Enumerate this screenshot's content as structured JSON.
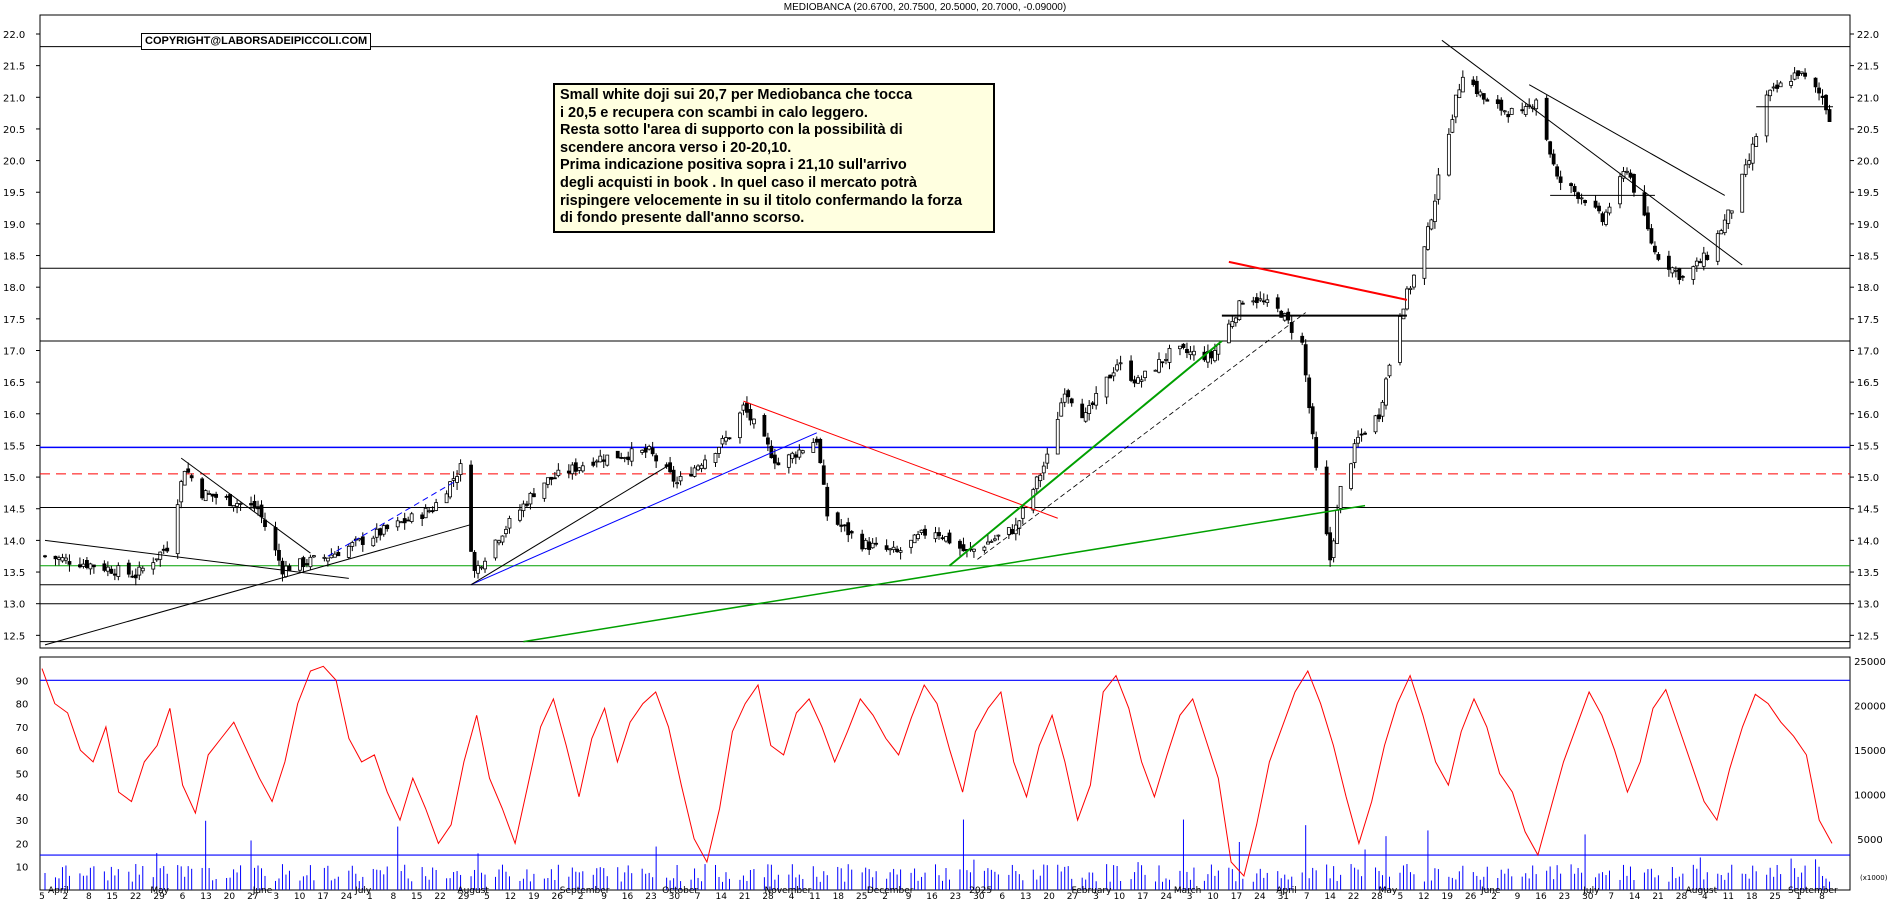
{
  "title": "MEDIOBANCA (20.6700, 20.7500, 20.5000, 20.7000, -0.09000)",
  "copyright": "COPYRIGHT@LABORSADEIPICCOLI.COM",
  "note_lines": [
    "Small white doji sui 20,7 per Mediobanca che tocca",
    "i 20,5 e recupera con scambi in calo leggero.",
    "Resta sotto l'area di supporto con la possibilità di",
    "scendere ancora verso i 20-20,10.",
    "Prima indicazione positiva sopra i 21,10 sull'arrivo",
    "degli acquisti in book . In quel caso il mercato potrà",
    "rispingere velocemente in su il titolo confermando la forza",
    "di fondo presente dall'anno scorso."
  ],
  "colors": {
    "price_axis_line": "#000000",
    "horizontal_blue": "#0000ff",
    "support_red": "#ff0000",
    "trend_green": "#00a000",
    "oscillator": "#ff0000",
    "volume": "#0000ff",
    "note_background": "#ffffe0"
  },
  "chart_data": [
    {
      "type": "candlestick",
      "ylim": [
        12.3,
        22.3
      ],
      "y_ticks": [
        "12.5",
        "13.0",
        "13.5",
        "14.0",
        "14.5",
        "15.0",
        "15.5",
        "16.0",
        "16.5",
        "17.0",
        "17.5",
        "18.0",
        "18.5",
        "19.0",
        "19.5",
        "20.0",
        "20.5",
        "21.0",
        "21.5",
        "22.0"
      ],
      "x_day_labels": [
        "5",
        "2",
        "8",
        "15",
        "22",
        "29",
        "6",
        "13",
        "20",
        "27",
        "3",
        "10",
        "17",
        "24",
        "1",
        "8",
        "15",
        "22",
        "29",
        "5",
        "12",
        "19",
        "26",
        "2",
        "9",
        "16",
        "23",
        "30",
        "7",
        "14",
        "21",
        "28",
        "4",
        "11",
        "18",
        "25",
        "2",
        "9",
        "16",
        "23",
        "30",
        "6",
        "13",
        "20",
        "27",
        "3",
        "10",
        "17",
        "24",
        "3",
        "10",
        "17",
        "24",
        "31",
        "7",
        "14",
        "22",
        "28",
        "5",
        "12",
        "19",
        "26",
        "2",
        "9",
        "16",
        "23",
        "30",
        "7",
        "14",
        "21",
        "28",
        "4",
        "11",
        "18",
        "25",
        "1",
        "8"
      ],
      "x_month_labels": [
        "April",
        "May",
        "June",
        "July",
        "August",
        "September",
        "October",
        "November",
        "December",
        "2025",
        "February",
        "March",
        "April",
        "May",
        "June",
        "July",
        "August",
        "September"
      ],
      "close_anchors": [
        [
          "2024-04-05",
          13.75
        ],
        [
          "2024-04-20",
          13.6
        ],
        [
          "2024-05-01",
          13.45
        ],
        [
          "2024-05-10",
          13.9
        ],
        [
          "2024-05-15",
          15.15
        ],
        [
          "2024-05-20",
          14.75
        ],
        [
          "2024-06-05",
          14.5
        ],
        [
          "2024-06-12",
          13.55
        ],
        [
          "2024-06-25",
          13.75
        ],
        [
          "2024-07-05",
          14.0
        ],
        [
          "2024-07-25",
          14.5
        ],
        [
          "2024-08-02",
          15.15
        ],
        [
          "2024-08-06",
          13.5
        ],
        [
          "2024-08-12",
          14.0
        ],
        [
          "2024-08-25",
          14.9
        ],
        [
          "2024-09-10",
          15.3
        ],
        [
          "2024-09-25",
          15.4
        ],
        [
          "2024-10-03",
          14.9
        ],
        [
          "2024-10-18",
          15.65
        ],
        [
          "2024-10-22",
          16.1
        ],
        [
          "2024-11-01",
          15.2
        ],
        [
          "2024-11-12",
          15.6
        ],
        [
          "2024-11-15",
          14.4
        ],
        [
          "2024-11-25",
          13.95
        ],
        [
          "2024-12-05",
          13.8
        ],
        [
          "2024-12-15",
          14.2
        ],
        [
          "2024-12-25",
          13.8
        ],
        [
          "2025-01-08",
          14.2
        ],
        [
          "2025-01-17",
          15.3
        ],
        [
          "2025-01-22",
          16.4
        ],
        [
          "2025-01-28",
          15.95
        ],
        [
          "2025-02-06",
          16.8
        ],
        [
          "2025-02-12",
          16.5
        ],
        [
          "2025-02-22",
          17.0
        ],
        [
          "2025-03-05",
          16.9
        ],
        [
          "2025-03-15",
          17.9
        ],
        [
          "2025-03-25",
          17.6
        ],
        [
          "2025-03-31",
          17.1
        ],
        [
          "2025-04-04",
          15.1
        ],
        [
          "2025-04-08",
          13.7
        ],
        [
          "2025-04-11",
          14.8
        ],
        [
          "2025-04-16",
          15.6
        ],
        [
          "2025-04-22",
          16.0
        ],
        [
          "2025-04-28",
          17.6
        ],
        [
          "2025-05-05",
          18.6
        ],
        [
          "2025-05-12",
          20.5
        ],
        [
          "2025-05-16",
          21.4
        ],
        [
          "2025-05-23",
          20.9
        ],
        [
          "2025-06-02",
          20.7
        ],
        [
          "2025-06-06",
          21.0
        ],
        [
          "2025-06-12",
          19.7
        ],
        [
          "2025-06-20",
          19.4
        ],
        [
          "2025-06-25",
          19.05
        ],
        [
          "2025-07-02",
          19.9
        ],
        [
          "2025-07-10",
          18.55
        ],
        [
          "2025-07-18",
          18.15
        ],
        [
          "2025-07-25",
          18.5
        ],
        [
          "2025-08-01",
          19.25
        ],
        [
          "2025-08-06",
          20.0
        ],
        [
          "2025-08-11",
          21.0
        ],
        [
          "2025-08-20",
          21.4
        ],
        [
          "2025-08-27",
          21.0
        ],
        [
          "2025-08-29",
          20.7
        ]
      ],
      "horizontal_levels": [
        {
          "value": 21.8,
          "color": "#000000"
        },
        {
          "value": 18.3,
          "color": "#000000"
        },
        {
          "value": 17.15,
          "color": "#000000"
        },
        {
          "value": 15.47,
          "color": "#0000ff"
        },
        {
          "value": 15.05,
          "color": "#ff0000",
          "dashed": true
        },
        {
          "value": 14.52,
          "color": "#000000"
        },
        {
          "value": 13.6,
          "color": "#00a000"
        },
        {
          "value": 13.3,
          "color": "#000000"
        },
        {
          "value": 13.0,
          "color": "#000000"
        },
        {
          "value": 12.4,
          "color": "#000000"
        }
      ]
    },
    {
      "type": "line",
      "name": "oscillator",
      "ylim": [
        0,
        100
      ],
      "y_ticks": [
        "10",
        "20",
        "30",
        "40",
        "50",
        "60",
        "70",
        "80",
        "90"
      ],
      "reference_lines": [
        90,
        15
      ],
      "right_axis_ticks": [
        "25000",
        "20000",
        "15000",
        "10000",
        "5000"
      ],
      "right_axis_unit": "(x1000)",
      "values": [
        95,
        80,
        76,
        60,
        55,
        70,
        42,
        38,
        55,
        62,
        78,
        45,
        33,
        58,
        65,
        72,
        60,
        48,
        38,
        55,
        80,
        94,
        96,
        90,
        65,
        55,
        58,
        42,
        30,
        48,
        35,
        20,
        28,
        55,
        75,
        48,
        35,
        20,
        45,
        70,
        82,
        62,
        40,
        65,
        78,
        55,
        72,
        80,
        85,
        70,
        45,
        22,
        12,
        35,
        68,
        80,
        88,
        62,
        58,
        76,
        82,
        70,
        55,
        68,
        82,
        75,
        65,
        58,
        74,
        88,
        80,
        60,
        42,
        68,
        78,
        85,
        55,
        40,
        62,
        75,
        55,
        30,
        45,
        85,
        92,
        78,
        55,
        40,
        58,
        75,
        82,
        65,
        48,
        12,
        6,
        28,
        55,
        70,
        85,
        94,
        80,
        62,
        40,
        20,
        38,
        62,
        80,
        92,
        75,
        55,
        45,
        68,
        82,
        70,
        50,
        42,
        25,
        15,
        35,
        55,
        70,
        85,
        75,
        60,
        42,
        55,
        78,
        86,
        70,
        54,
        38,
        30,
        52,
        70,
        84,
        80,
        72,
        66,
        58,
        30,
        20
      ]
    }
  ]
}
